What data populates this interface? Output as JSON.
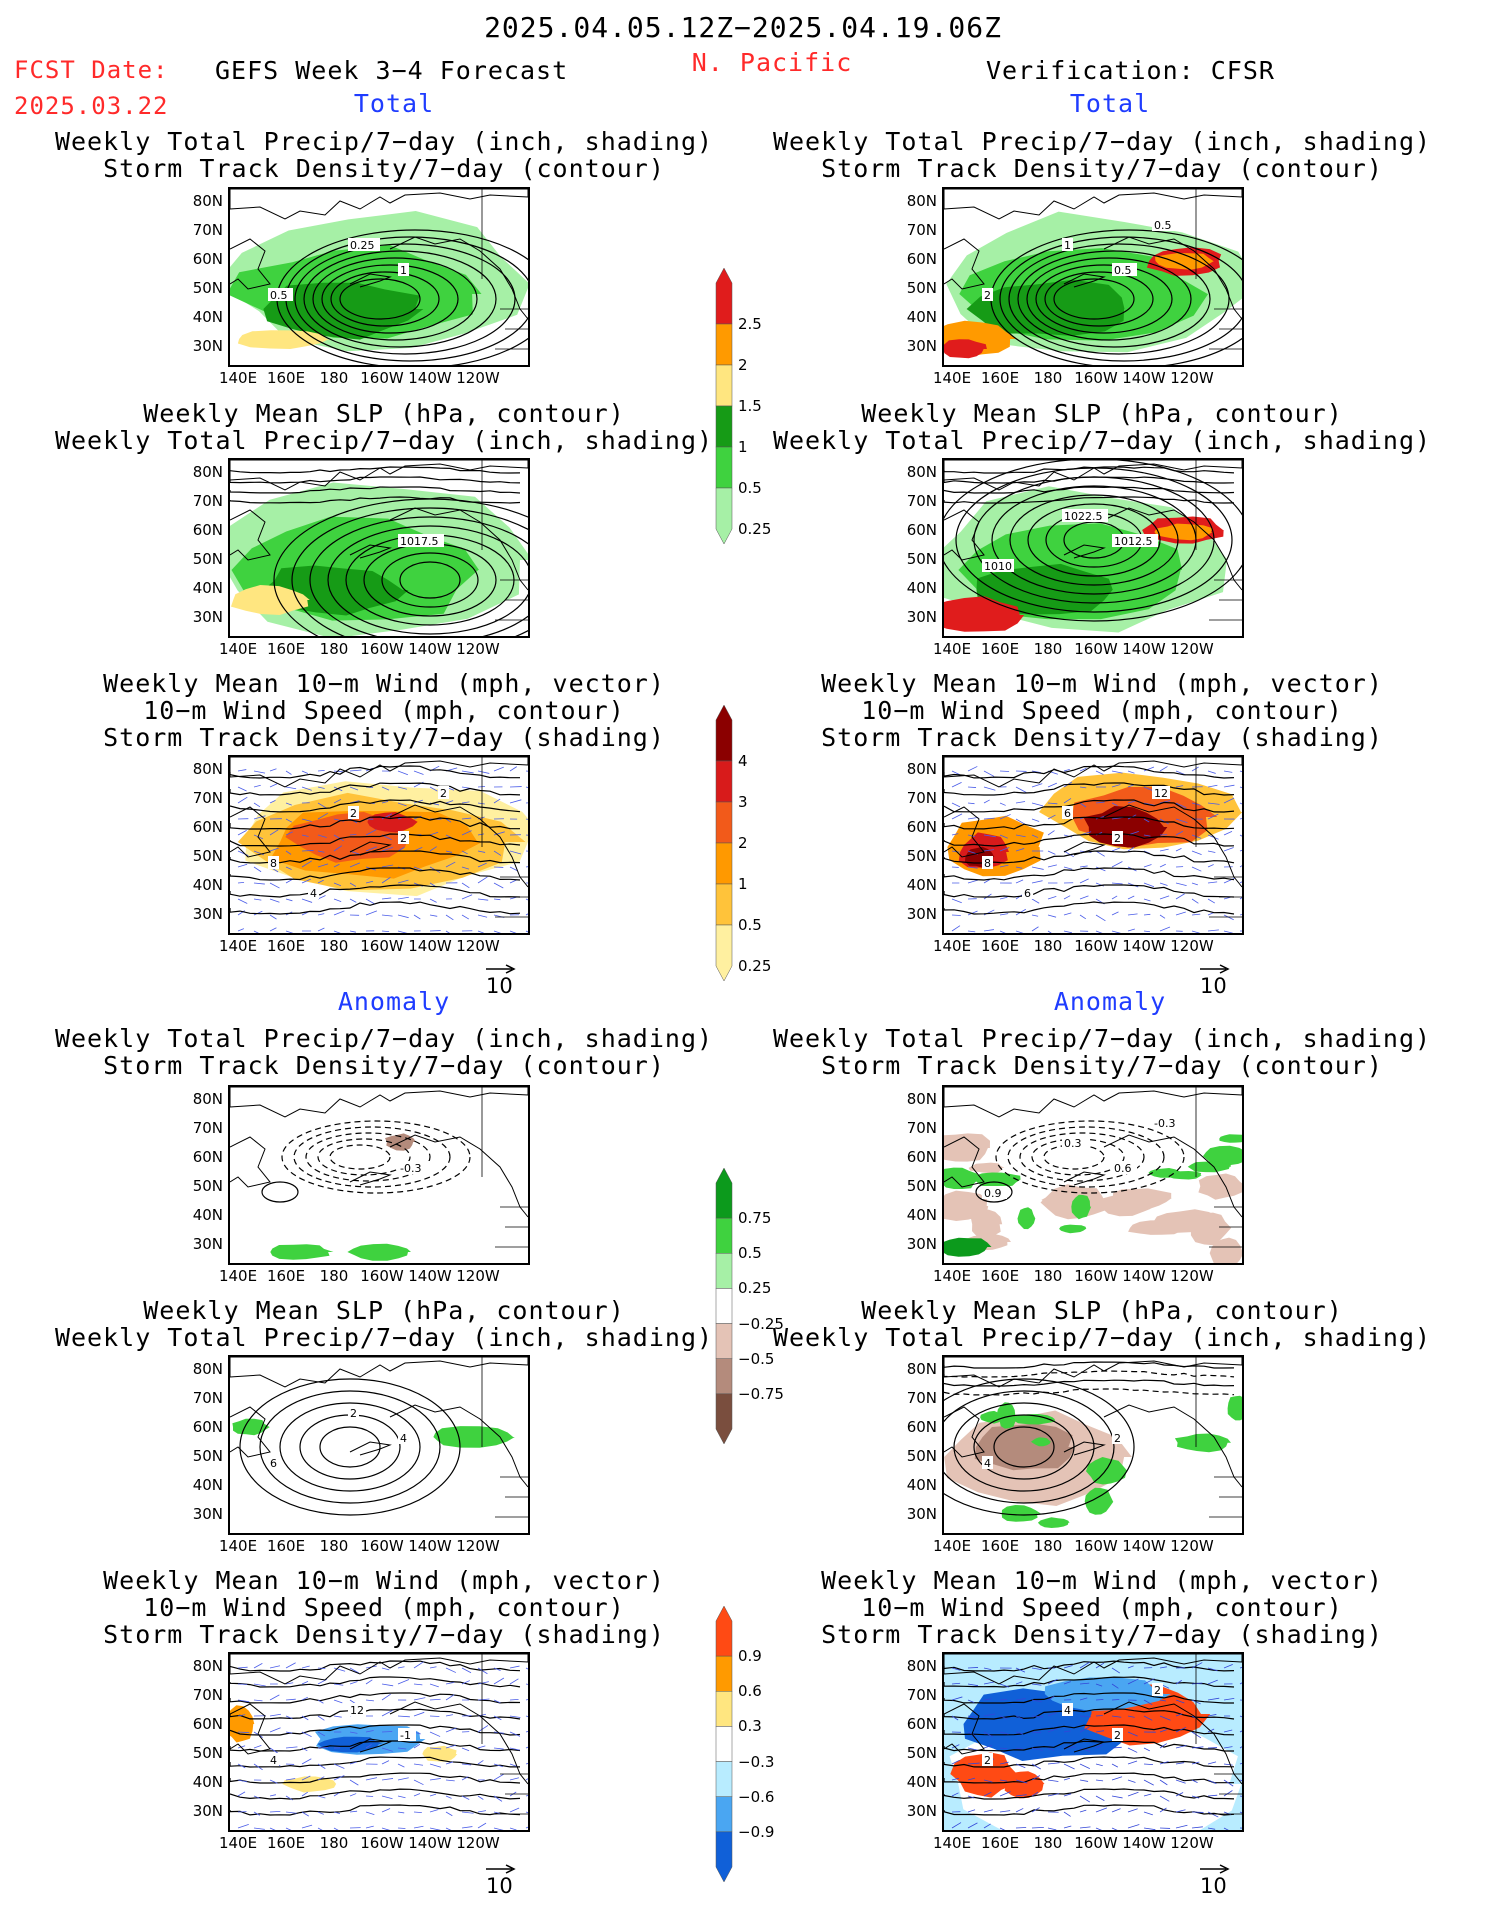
{
  "header": {
    "date_range": "2025.04.05.12Z−2025.04.19.06Z",
    "fcst_label": "FCST Date:",
    "fcst_date": "2025.03.22",
    "model": "GEFS Week 3−4 Forecast",
    "region": "N. Pacific",
    "verification": "Verification: CFSR"
  },
  "sections": {
    "total_left": "Total",
    "total_right": "Total",
    "anom_left": "Anomaly",
    "anom_right": "Anomaly"
  },
  "titles": {
    "t1": [
      "Weekly Total Precip/7−day (inch, shading)",
      "Storm Track Density/7−day (contour)"
    ],
    "t2": [
      "Weekly Mean SLP (hPa, contour)",
      "Weekly Total Precip/7−day (inch, shading)"
    ],
    "t3": [
      "Weekly Mean 10−m Wind (mph, vector)",
      "10−m Wind Speed (mph, contour)",
      "Storm Track Density/7−day (shading)"
    ]
  },
  "axes": {
    "lat": [
      "80N",
      "70N",
      "60N",
      "50N",
      "40N",
      "30N"
    ],
    "lon": [
      "140E",
      "160E",
      "180",
      "160W",
      "140W",
      "120W"
    ]
  },
  "vector_ref": "10",
  "contour_labels": {
    "p1L": [
      "1",
      "0.5",
      "0.25"
    ],
    "p1R": [
      "0.5",
      "2",
      "1",
      "0.5"
    ],
    "p2L": [
      "1017.5"
    ],
    "p2R": [
      "1012.5",
      "1010",
      "1022.5"
    ],
    "p3L": [
      "2",
      "8",
      "2",
      "2",
      "4"
    ],
    "p3R": [
      "2",
      "8",
      "6",
      "12",
      "6"
    ],
    "p4L": [
      "-0.3"
    ],
    "p4R": [
      "0.6",
      "0.9",
      "0.3",
      "-0.3"
    ],
    "p5L": [
      "4",
      "6",
      "2"
    ],
    "p5R": [
      "2",
      "4"
    ],
    "p6L": [
      "-1",
      "4",
      "12"
    ],
    "p6R": [
      "2",
      "2",
      "4",
      "2"
    ]
  },
  "colorbars": {
    "precip": {
      "labels": [
        "2.5",
        "2",
        "1.5",
        "1",
        "0.5",
        "0.25"
      ],
      "colors": [
        "#e01c1c",
        "#ff9a00",
        "#ffe680",
        "#169b16",
        "#3fd23f",
        "#a6f0a6"
      ]
    },
    "storm": {
      "labels": [
        "4",
        "3",
        "2",
        "1",
        "0.5",
        "0.25"
      ],
      "colors": [
        "#8b0000",
        "#d81b1b",
        "#f25a1a",
        "#ff9900",
        "#ffc33a",
        "#fff0a0"
      ]
    },
    "precip_anom": {
      "labels": [
        "0.75",
        "0.5",
        "0.25",
        "−0.25",
        "−0.5",
        "−0.75"
      ],
      "colors": [
        "#0c9a1c",
        "#3fd23f",
        "#a6f0a6",
        "#ffffff",
        "#e4c3b6",
        "#b48b7c",
        "#7a4e3e"
      ]
    },
    "storm_anom": {
      "labels": [
        "0.9",
        "0.6",
        "0.3",
        "−0.3",
        "−0.6",
        "−0.9"
      ],
      "colors": [
        "#ff4a14",
        "#ff9a00",
        "#ffe680",
        "#ffffff",
        "#b8ecff",
        "#4aa6f2",
        "#1060d8"
      ]
    }
  }
}
